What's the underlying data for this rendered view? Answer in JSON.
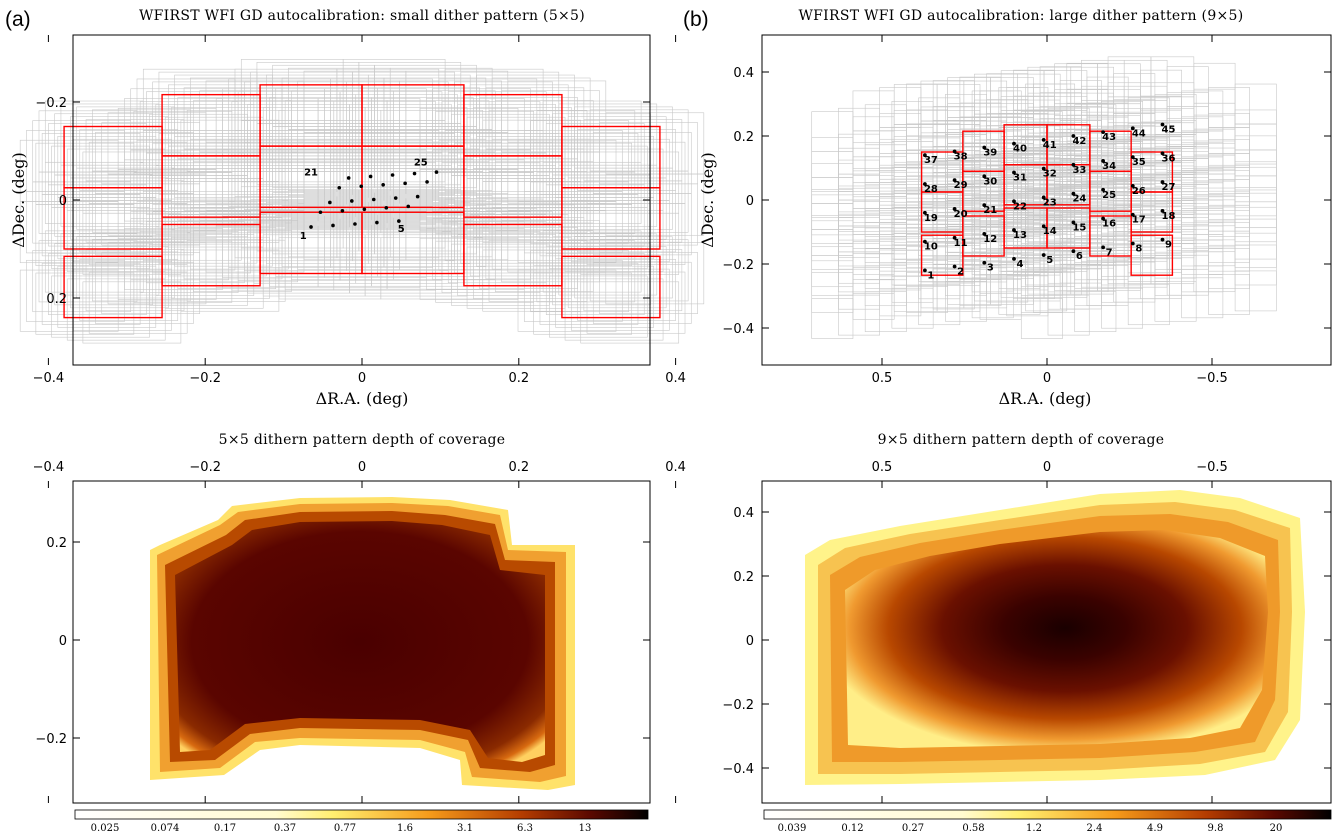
{
  "panel_labels": {
    "a": "(a)",
    "b": "(b)"
  },
  "chart_data": [
    {
      "id": "a_top",
      "type": "scatter",
      "title": "WFIRST WFI GD autocalibration: small dither pattern (5×5)",
      "xlabel": "ΔR.A. (deg)",
      "ylabel": "ΔDec. (deg)",
      "xlim": [
        -0.6,
        0.6
      ],
      "ylim": [
        -0.33,
        0.33
      ],
      "x_ticks": [
        "−0.4",
        "−0.2",
        "0",
        "0.2",
        "0.4"
      ],
      "y_ticks": [
        "−0.2",
        "0",
        "0.2"
      ],
      "dither_points": 25,
      "point_label_numbers": [
        "1",
        "5",
        "21",
        "25"
      ],
      "footprint_color": "#ff0000",
      "overlay_color": "#c8c8c8"
    },
    {
      "id": "b_top",
      "type": "scatter",
      "title": "WFIRST WFI GD autocalibration: large dither pattern (9×5)",
      "xlabel": "ΔR.A. (deg)",
      "ylabel": "ΔDec. (deg)",
      "xlim": [
        0.9,
        -0.9
      ],
      "ylim": [
        -0.48,
        0.48
      ],
      "x_ticks": [
        "0.5",
        "0",
        "−0.5"
      ],
      "y_ticks": [
        "0.4",
        "0.2",
        "0",
        "−0.2",
        "−0.4"
      ],
      "dither_points": 45,
      "point_label_numbers": [
        "1",
        "2",
        "3",
        "4",
        "5",
        "6",
        "7",
        "8",
        "9",
        "10",
        "11",
        "12",
        "13",
        "14",
        "15",
        "16",
        "17",
        "18",
        "19",
        "20",
        "21",
        "22",
        "23",
        "24",
        "25",
        "26",
        "27",
        "28",
        "29",
        "30",
        "31",
        "32",
        "33",
        "34",
        "35",
        "36",
        "37",
        "38",
        "39",
        "40",
        "41",
        "42",
        "43",
        "44",
        "45"
      ],
      "footprint_color": "#ff0000",
      "overlay_color": "#c8c8c8"
    },
    {
      "id": "a_bottom",
      "type": "heatmap",
      "title": "5×5 dithern pattern depth of coverage",
      "x_ticks": [
        "−0.4",
        "−0.2",
        "0",
        "0.2",
        "0.4"
      ],
      "y_ticks": [
        "0.2",
        "0",
        "−0.2"
      ],
      "colorbar_ticks": [
        "0.025",
        "0.074",
        "0.17",
        "0.37",
        "0.77",
        "1.6",
        "3.1",
        "6.3",
        "13"
      ]
    },
    {
      "id": "b_bottom",
      "type": "heatmap",
      "title": "9×5 dithern pattern depth of coverage",
      "x_ticks": [
        "0.5",
        "0",
        "−0.5"
      ],
      "y_ticks": [
        "0.4",
        "0.2",
        "0",
        "−0.2",
        "−0.4"
      ],
      "colorbar_ticks": [
        "0.039",
        "0.12",
        "0.27",
        "0.58",
        "1.2",
        "2.4",
        "4.9",
        "9.8",
        "20"
      ]
    }
  ]
}
